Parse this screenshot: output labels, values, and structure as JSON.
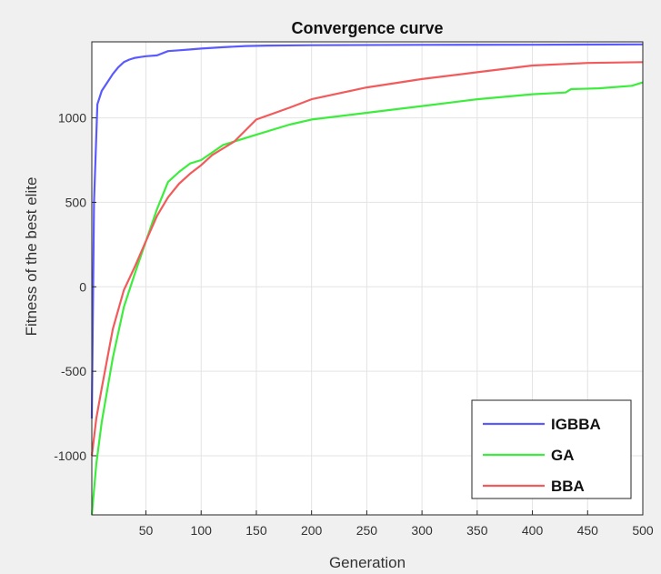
{
  "chart_data": {
    "type": "line",
    "title": "Convergence curve",
    "xlabel": "Generation",
    "ylabel": "Fitness of the best elite",
    "xlim": [
      1,
      500
    ],
    "ylim": [
      -1350,
      1450
    ],
    "xticks": [
      50,
      100,
      150,
      200,
      250,
      300,
      350,
      400,
      450,
      500
    ],
    "yticks": [
      -1000,
      -500,
      0,
      500,
      1000
    ],
    "grid": true,
    "legend_position": "bottom-right",
    "series": [
      {
        "name": "IGBBA",
        "color": "#5a5aff",
        "x": [
          1,
          3,
          6,
          10,
          15,
          20,
          25,
          30,
          35,
          40,
          45,
          50,
          60,
          70,
          80,
          90,
          100,
          120,
          140,
          160,
          200,
          300,
          400,
          500
        ],
        "y": [
          -780,
          500,
          1080,
          1160,
          1210,
          1260,
          1300,
          1330,
          1345,
          1355,
          1360,
          1365,
          1370,
          1395,
          1400,
          1405,
          1410,
          1418,
          1425,
          1428,
          1430,
          1432,
          1433,
          1435
        ]
      },
      {
        "name": "GA",
        "color": "#3ded3d",
        "x": [
          1,
          5,
          10,
          20,
          30,
          40,
          50,
          60,
          70,
          80,
          90,
          100,
          120,
          150,
          180,
          200,
          250,
          300,
          350,
          400,
          430,
          435,
          460,
          490,
          500
        ],
        "y": [
          -1350,
          -1050,
          -800,
          -420,
          -120,
          80,
          270,
          460,
          620,
          680,
          730,
          750,
          840,
          900,
          960,
          990,
          1030,
          1070,
          1110,
          1140,
          1150,
          1170,
          1175,
          1190,
          1210
        ]
      },
      {
        "name": "BBA",
        "color": "#f25b5b",
        "x": [
          1,
          5,
          10,
          20,
          30,
          40,
          50,
          60,
          70,
          80,
          90,
          100,
          110,
          130,
          150,
          180,
          200,
          250,
          300,
          350,
          400,
          450,
          500
        ],
        "y": [
          -1000,
          -780,
          -600,
          -250,
          -20,
          120,
          270,
          420,
          530,
          610,
          670,
          720,
          780,
          860,
          990,
          1060,
          1110,
          1180,
          1230,
          1270,
          1310,
          1325,
          1330
        ]
      }
    ]
  }
}
